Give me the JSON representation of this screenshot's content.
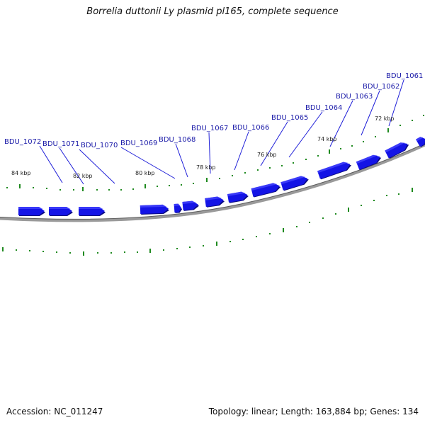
{
  "title": "Borrelia duttonii Ly plasmid pl165, complete sequence",
  "footer": {
    "accession": "Accession: NC_011247",
    "summary": "Topology: linear; Length: 163,884 bp; Genes: 134"
  },
  "genes": [
    "BDU_1072",
    "BDU_1071",
    "BDU_1070",
    "BDU_1069",
    "BDU_1068",
    "BDU_1067",
    "BDU_1066",
    "BDU_1065",
    "BDU_1064",
    "BDU_1063",
    "BDU_1062",
    "BDU_1061"
  ],
  "scale_labels": [
    "84 kbp",
    "82 kbp",
    "80 kbp",
    "78 kbp",
    "76 kbp",
    "74 kbp",
    "72 kbp"
  ],
  "colors": {
    "gene": "#1414e6",
    "gene_shadow": "#0a0a80",
    "backbone": "#808080",
    "ticks": "#1f8a1f",
    "label": "#1a1aa8"
  }
}
